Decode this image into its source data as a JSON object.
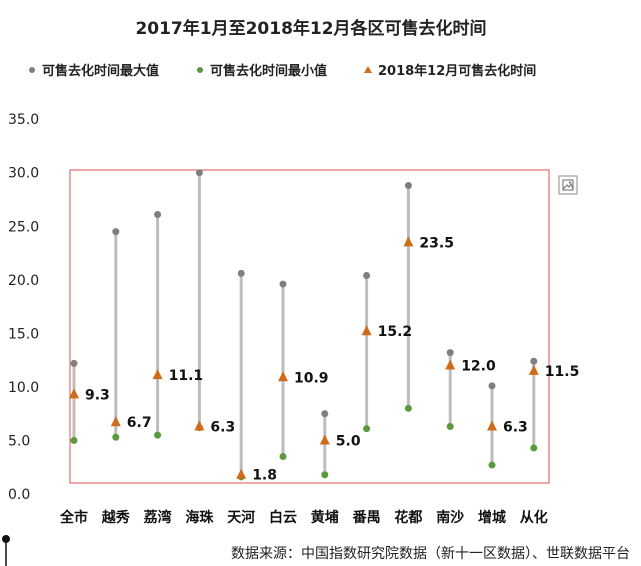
{
  "chart_data": {
    "type": "scatter",
    "title": "2017年1月至2018年12月各区可售去化时间",
    "categories": [
      "全市",
      "越秀",
      "荔湾",
      "海珠",
      "天河",
      "白云",
      "黄埔",
      "番禺",
      "花都",
      "南沙",
      "增城",
      "从化"
    ],
    "series": [
      {
        "name": "可售去化时间最大值",
        "color": "#7f7f7f",
        "marker": "circle",
        "values": [
          12.2,
          24.5,
          26.1,
          30.0,
          20.6,
          19.6,
          7.5,
          20.4,
          28.8,
          13.2,
          10.1,
          12.4
        ]
      },
      {
        "name": "可售去化时间最小值",
        "color": "#5b9a3c",
        "marker": "circle",
        "values": [
          5.0,
          5.3,
          5.5,
          6.2,
          1.6,
          3.5,
          1.8,
          6.1,
          8.0,
          6.3,
          2.7,
          4.3
        ]
      },
      {
        "name": "2018年12月可售去化时间",
        "color": "#d06b1a",
        "marker": "triangle",
        "values": [
          9.3,
          6.7,
          11.1,
          6.3,
          1.8,
          10.9,
          5.0,
          15.2,
          23.5,
          12.0,
          6.3,
          11.5
        ]
      }
    ],
    "data_labels": [
      "9.3",
      "6.7",
      "11.1",
      "6.3",
      "1.8",
      "10.9",
      "5.0",
      "15.2",
      "23.5",
      "12.0",
      "6.3",
      "11.5"
    ],
    "yticks": [
      "0.0",
      "5.0",
      "10.0",
      "15.0",
      "20.0",
      "25.0",
      "30.0",
      "35.0"
    ],
    "ylim": [
      0,
      35
    ],
    "xlabel": "",
    "ylabel": "",
    "legend_position": "top",
    "grid": false
  },
  "source_text": "数据来源：中国指数研究院数据（新十一区数据）、世联数据平台"
}
